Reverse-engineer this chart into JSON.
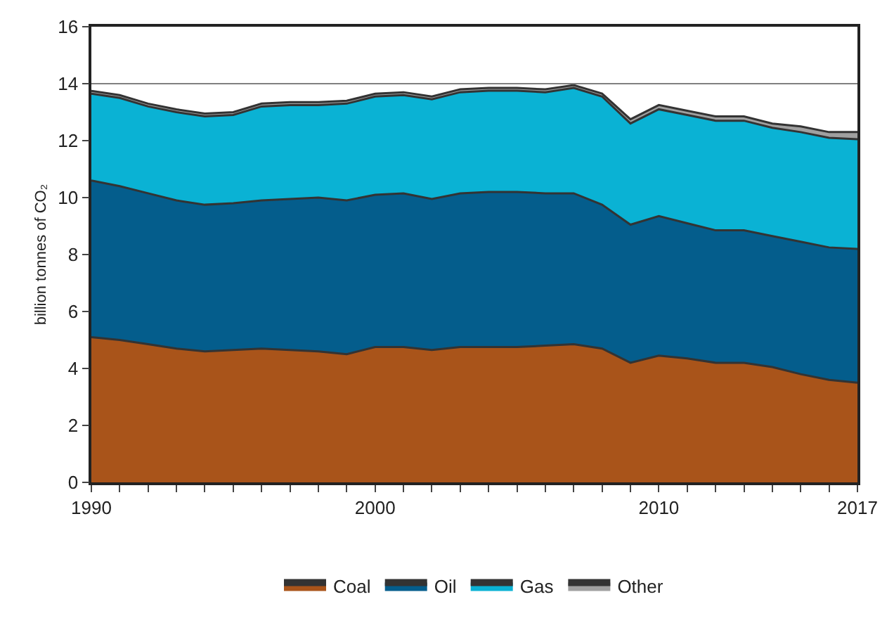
{
  "chart_data": {
    "type": "area",
    "stacked": true,
    "ylabel": "billion tonnes of CO₂",
    "x": [
      1990,
      1991,
      1992,
      1993,
      1994,
      1995,
      1996,
      1997,
      1998,
      1999,
      2000,
      2001,
      2002,
      2003,
      2004,
      2005,
      2006,
      2007,
      2008,
      2009,
      2010,
      2011,
      2012,
      2013,
      2014,
      2015,
      2016,
      2017
    ],
    "series": [
      {
        "name": "Coal",
        "color": "#a9541a",
        "values": [
          5.1,
          5.0,
          4.85,
          4.7,
          4.6,
          4.65,
          4.7,
          4.65,
          4.6,
          4.5,
          4.75,
          4.75,
          4.65,
          4.75,
          4.75,
          4.75,
          4.8,
          4.85,
          4.7,
          4.2,
          4.45,
          4.35,
          4.2,
          4.2,
          4.05,
          3.8,
          3.6,
          3.5
        ]
      },
      {
        "name": "Oil",
        "color": "#045d8c",
        "values": [
          5.5,
          5.4,
          5.3,
          5.2,
          5.15,
          5.15,
          5.2,
          5.3,
          5.4,
          5.4,
          5.35,
          5.4,
          5.3,
          5.4,
          5.45,
          5.45,
          5.35,
          5.3,
          5.05,
          4.85,
          4.9,
          4.75,
          4.65,
          4.65,
          4.6,
          4.65,
          4.65,
          4.7
        ]
      },
      {
        "name": "Gas",
        "color": "#0ab2d4",
        "values": [
          3.05,
          3.1,
          3.05,
          3.1,
          3.1,
          3.1,
          3.3,
          3.3,
          3.25,
          3.4,
          3.45,
          3.45,
          3.5,
          3.55,
          3.55,
          3.55,
          3.55,
          3.7,
          3.8,
          3.55,
          3.75,
          3.8,
          3.85,
          3.85,
          3.8,
          3.85,
          3.85,
          3.85
        ]
      },
      {
        "name": "Other",
        "color": "#a0a0a0",
        "values": [
          0.1,
          0.1,
          0.1,
          0.1,
          0.1,
          0.1,
          0.1,
          0.1,
          0.1,
          0.1,
          0.1,
          0.1,
          0.1,
          0.1,
          0.1,
          0.1,
          0.1,
          0.1,
          0.1,
          0.15,
          0.15,
          0.15,
          0.15,
          0.15,
          0.15,
          0.2,
          0.2,
          0.25
        ]
      }
    ],
    "xlim": [
      1990,
      2017
    ],
    "xticks": [
      1990,
      {
        "value": 1991,
        "label": null
      },
      {
        "value": 1992,
        "label": null
      },
      {
        "value": 1993,
        "label": null
      },
      {
        "value": 1994,
        "label": null
      },
      {
        "value": 1995,
        "label": null
      },
      {
        "value": 1996,
        "label": null
      },
      {
        "value": 1997,
        "label": null
      },
      {
        "value": 1998,
        "label": null
      },
      {
        "value": 1999,
        "label": null
      },
      2000,
      {
        "value": 2001,
        "label": null
      },
      {
        "value": 2002,
        "label": null
      },
      {
        "value": 2003,
        "label": null
      },
      {
        "value": 2004,
        "label": null
      },
      {
        "value": 2005,
        "label": null
      },
      {
        "value": 2006,
        "label": null
      },
      {
        "value": 2007,
        "label": null
      },
      {
        "value": 2008,
        "label": null
      },
      {
        "value": 2009,
        "label": null
      },
      2010,
      {
        "value": 2011,
        "label": null
      },
      {
        "value": 2012,
        "label": null
      },
      {
        "value": 2013,
        "label": null
      },
      {
        "value": 2014,
        "label": null
      },
      {
        "value": 2015,
        "label": null
      },
      {
        "value": 2016,
        "label": null
      },
      2017
    ],
    "ylim": [
      0,
      16
    ],
    "yticks": [
      0,
      2,
      4,
      6,
      8,
      10,
      12,
      14,
      16
    ],
    "ref_lines": [
      {
        "axis": "y",
        "value": 14,
        "color": "#808080"
      }
    ],
    "grid": false,
    "legend": "bottom"
  }
}
